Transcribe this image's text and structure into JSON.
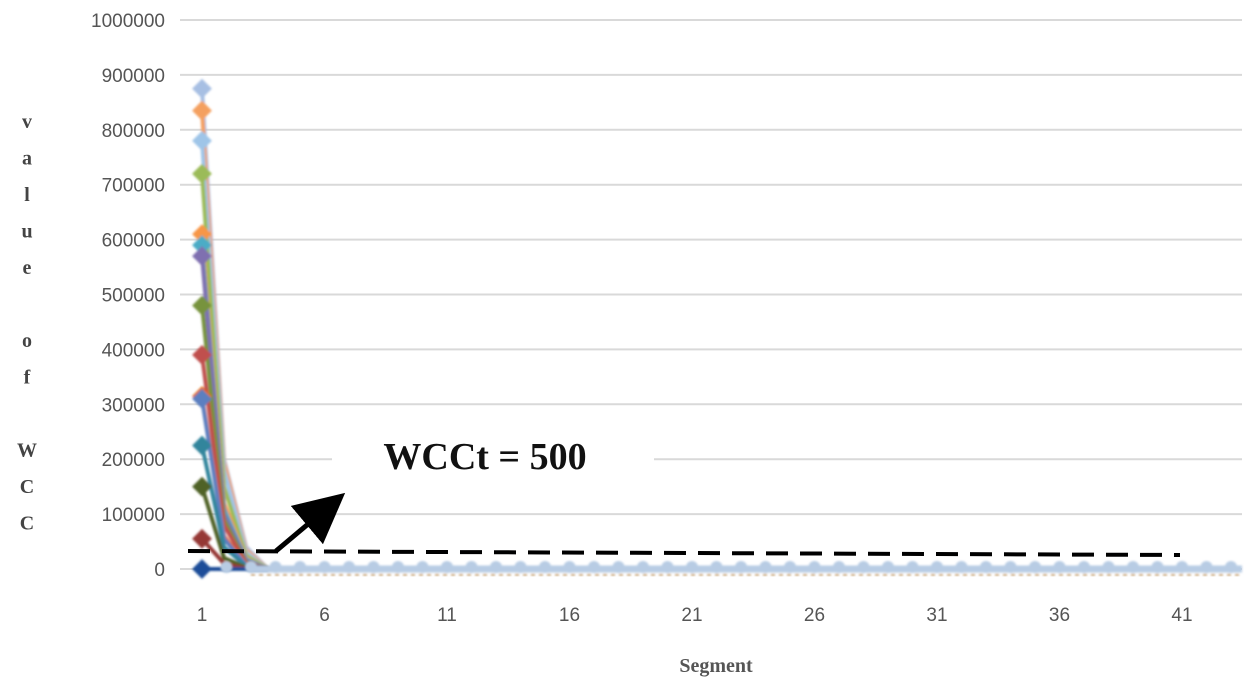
{
  "chart_data": {
    "type": "line",
    "title": "",
    "xlabel": "Segment",
    "ylabel": "value of WCC",
    "ylabel_letters": [
      "v",
      "a",
      "l",
      "u",
      "e",
      "",
      "o",
      "f",
      "",
      "W",
      "C",
      "C"
    ],
    "x_ticks": [
      "1",
      "6",
      "11",
      "16",
      "21",
      "26",
      "31",
      "36",
      "41"
    ],
    "y_ticks": [
      "1000000",
      "900000",
      "800000",
      "700000",
      "600000",
      "500000",
      "400000",
      "300000",
      "200000",
      "100000",
      "0"
    ],
    "xlim": [
      0,
      43
    ],
    "ylim": [
      0,
      1000000
    ],
    "grid": true,
    "legend": "none",
    "series": [
      {
        "color": "#a7bfe3",
        "values": [
          875000,
          200000,
          40000,
          0
        ]
      },
      {
        "color": "#f4a060",
        "values": [
          835000,
          195000,
          35000,
          0
        ]
      },
      {
        "color": "#9fc5e8",
        "values": [
          780000,
          180000,
          30000,
          0
        ]
      },
      {
        "color": "#9bbb59",
        "values": [
          720000,
          150000,
          25000,
          0
        ]
      },
      {
        "color": "#f79646",
        "values": [
          610000,
          120000,
          20000,
          0
        ]
      },
      {
        "color": "#4bacc6",
        "values": [
          590000,
          110000,
          18000,
          0
        ]
      },
      {
        "color": "#7f6fb0",
        "values": [
          570000,
          100000,
          15000,
          0
        ]
      },
      {
        "color": "#77933c",
        "values": [
          480000,
          90000,
          12000,
          0
        ]
      },
      {
        "color": "#c0504d",
        "values": [
          390000,
          80000,
          10000,
          0
        ]
      },
      {
        "color": "#e46c0a",
        "values": [
          315000,
          60000,
          8000,
          0
        ]
      },
      {
        "color": "#5b7fc0",
        "values": [
          310000,
          55000,
          7000,
          0
        ]
      },
      {
        "color": "#31859c",
        "values": [
          225000,
          40000,
          5000,
          0
        ]
      },
      {
        "color": "#4f6228",
        "values": [
          150000,
          20000,
          3000,
          0
        ]
      },
      {
        "color": "#953735",
        "values": [
          55000,
          10000,
          1000,
          0
        ]
      },
      {
        "color": "#1f4e99",
        "values": [
          0,
          0,
          0,
          0
        ]
      }
    ],
    "flat_line_color": "#b8cce4",
    "flat_line_color2": "#c9a77a",
    "threshold": {
      "label": "WCCt = 500",
      "color": "#000000"
    }
  }
}
